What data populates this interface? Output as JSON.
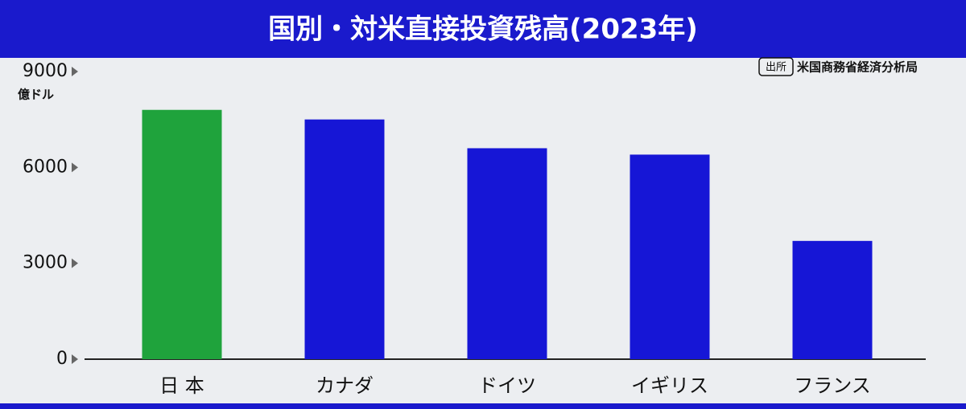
{
  "chart_data": {
    "type": "bar",
    "title": "国別・対米直接投資残高(2023年)",
    "y_unit": "億ドル",
    "source_label": "出所",
    "source": "米国商務省経済分析局",
    "categories": [
      "日 本",
      "カナダ",
      "ドイツ",
      "イギリス",
      "フランス"
    ],
    "values": [
      7800,
      7500,
      6600,
      6400,
      3700
    ],
    "colors": [
      "#1fa33c",
      "#1616d6",
      "#1616d6",
      "#1616d6",
      "#1616d6"
    ],
    "ylim": [
      0,
      9000
    ],
    "yticks": [
      0,
      3000,
      6000,
      9000
    ],
    "grid": false
  }
}
